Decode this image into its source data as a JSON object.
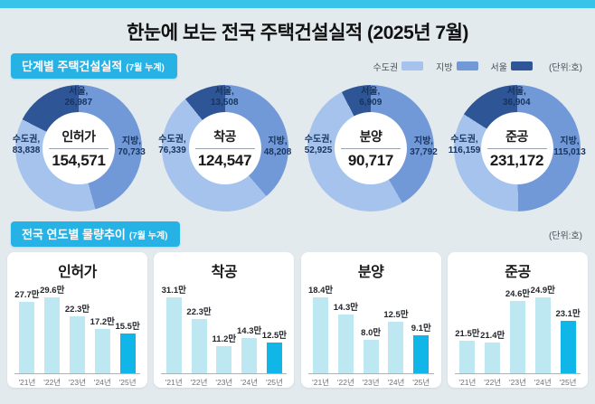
{
  "title": "한눈에 보는 전국 주택건설실적 (2025년 7월)",
  "colors": {
    "top_strip": "#38c3eb",
    "accent": "#27b2e6",
    "page_bg": "#e3eaee",
    "sudogwon": "#a5c3ec",
    "jibang": "#7199d8",
    "seoul": "#2e5596",
    "bar": "#bde8f2",
    "bar_highlight": "#10b6e8",
    "label_navy": "#17335e"
  },
  "section1": {
    "header": "단계별 주택건설실적",
    "header_sub": "(7월 누계)",
    "unit": "(단위:호)",
    "legend": [
      {
        "label": "수도권",
        "color_key": "sudogwon"
      },
      {
        "label": "지방",
        "color_key": "jibang"
      },
      {
        "label": "서울",
        "color_key": "seoul"
      }
    ]
  },
  "section2": {
    "header": "전국 연도별 물량추이",
    "header_sub": "(7월 누계)",
    "unit": "(단위:호)"
  },
  "chart_data": [
    {
      "type": "pie",
      "title": "인허가",
      "total": 154571,
      "total_label": "154,571",
      "slices": [
        {
          "key": "sudogwon",
          "label": "수도권,",
          "value": 83838,
          "value_label": "83,838"
        },
        {
          "key": "jibang",
          "label": "지방,",
          "value": 70733,
          "value_label": "70,733"
        },
        {
          "key": "seoul",
          "label": "서울,",
          "value": 26987,
          "value_label": "26,987",
          "note": "subset of 수도권"
        }
      ]
    },
    {
      "type": "pie",
      "title": "착공",
      "total": 124547,
      "total_label": "124,547",
      "slices": [
        {
          "key": "sudogwon",
          "label": "수도권,",
          "value": 76339,
          "value_label": "76,339"
        },
        {
          "key": "jibang",
          "label": "지방,",
          "value": 48208,
          "value_label": "48,208"
        },
        {
          "key": "seoul",
          "label": "서울,",
          "value": 13508,
          "value_label": "13,508",
          "note": "subset of 수도권"
        }
      ]
    },
    {
      "type": "pie",
      "title": "분양",
      "total": 90717,
      "total_label": "90,717",
      "slices": [
        {
          "key": "sudogwon",
          "label": "수도권,",
          "value": 52925,
          "value_label": "52,925"
        },
        {
          "key": "jibang",
          "label": "지방,",
          "value": 37792,
          "value_label": "37,792"
        },
        {
          "key": "seoul",
          "label": "서울,",
          "value": 6909,
          "value_label": "6,909",
          "note": "subset of 수도권"
        }
      ]
    },
    {
      "type": "pie",
      "title": "준공",
      "total": 231172,
      "total_label": "231,172",
      "slices": [
        {
          "key": "sudogwon",
          "label": "수도권,",
          "value": 116159,
          "value_label": "116,159"
        },
        {
          "key": "jibang",
          "label": "지방,",
          "value": 115013,
          "value_label": "115,013"
        },
        {
          "key": "seoul",
          "label": "서울,",
          "value": 36904,
          "value_label": "36,904",
          "note": "subset of 수도권"
        }
      ]
    },
    {
      "type": "bar",
      "title": "인허가",
      "categories": [
        "'21년",
        "'22년",
        "'23년",
        "'24년",
        "'25년"
      ],
      "values": [
        27.7,
        29.6,
        22.3,
        17.2,
        15.5
      ],
      "labels": [
        "27.7만",
        "29.6만",
        "22.3만",
        "17.2만",
        "15.5만"
      ],
      "unit": "만",
      "ylim": [
        0,
        29.6
      ],
      "highlight_index": 4
    },
    {
      "type": "bar",
      "title": "착공",
      "categories": [
        "'21년",
        "'22년",
        "'23년",
        "'24년",
        "'25년"
      ],
      "values": [
        31.1,
        22.3,
        11.2,
        14.3,
        12.5
      ],
      "labels": [
        "31.1만",
        "22.3만",
        "11.2만",
        "14.3만",
        "12.5만"
      ],
      "unit": "만",
      "ylim": [
        0,
        31.1
      ],
      "highlight_index": 4
    },
    {
      "type": "bar",
      "title": "분양",
      "categories": [
        "'21년",
        "'22년",
        "'23년",
        "'24년",
        "'25년"
      ],
      "values": [
        18.4,
        14.3,
        8.0,
        12.5,
        9.1
      ],
      "labels": [
        "18.4만",
        "14.3만",
        "8.0만",
        "12.5만",
        "9.1만"
      ],
      "unit": "만",
      "ylim": [
        0,
        18.4
      ],
      "highlight_index": 4
    },
    {
      "type": "bar",
      "title": "준공",
      "categories": [
        "'21년",
        "'22년",
        "'23년",
        "'24년",
        "'25년"
      ],
      "values": [
        21.5,
        21.4,
        24.6,
        24.9,
        23.1
      ],
      "labels": [
        "21.5만",
        "21.4만",
        "24.6만",
        "24.9만",
        "23.1만"
      ],
      "unit": "만",
      "ylim": [
        19,
        24.9
      ],
      "highlight_index": 4
    }
  ]
}
